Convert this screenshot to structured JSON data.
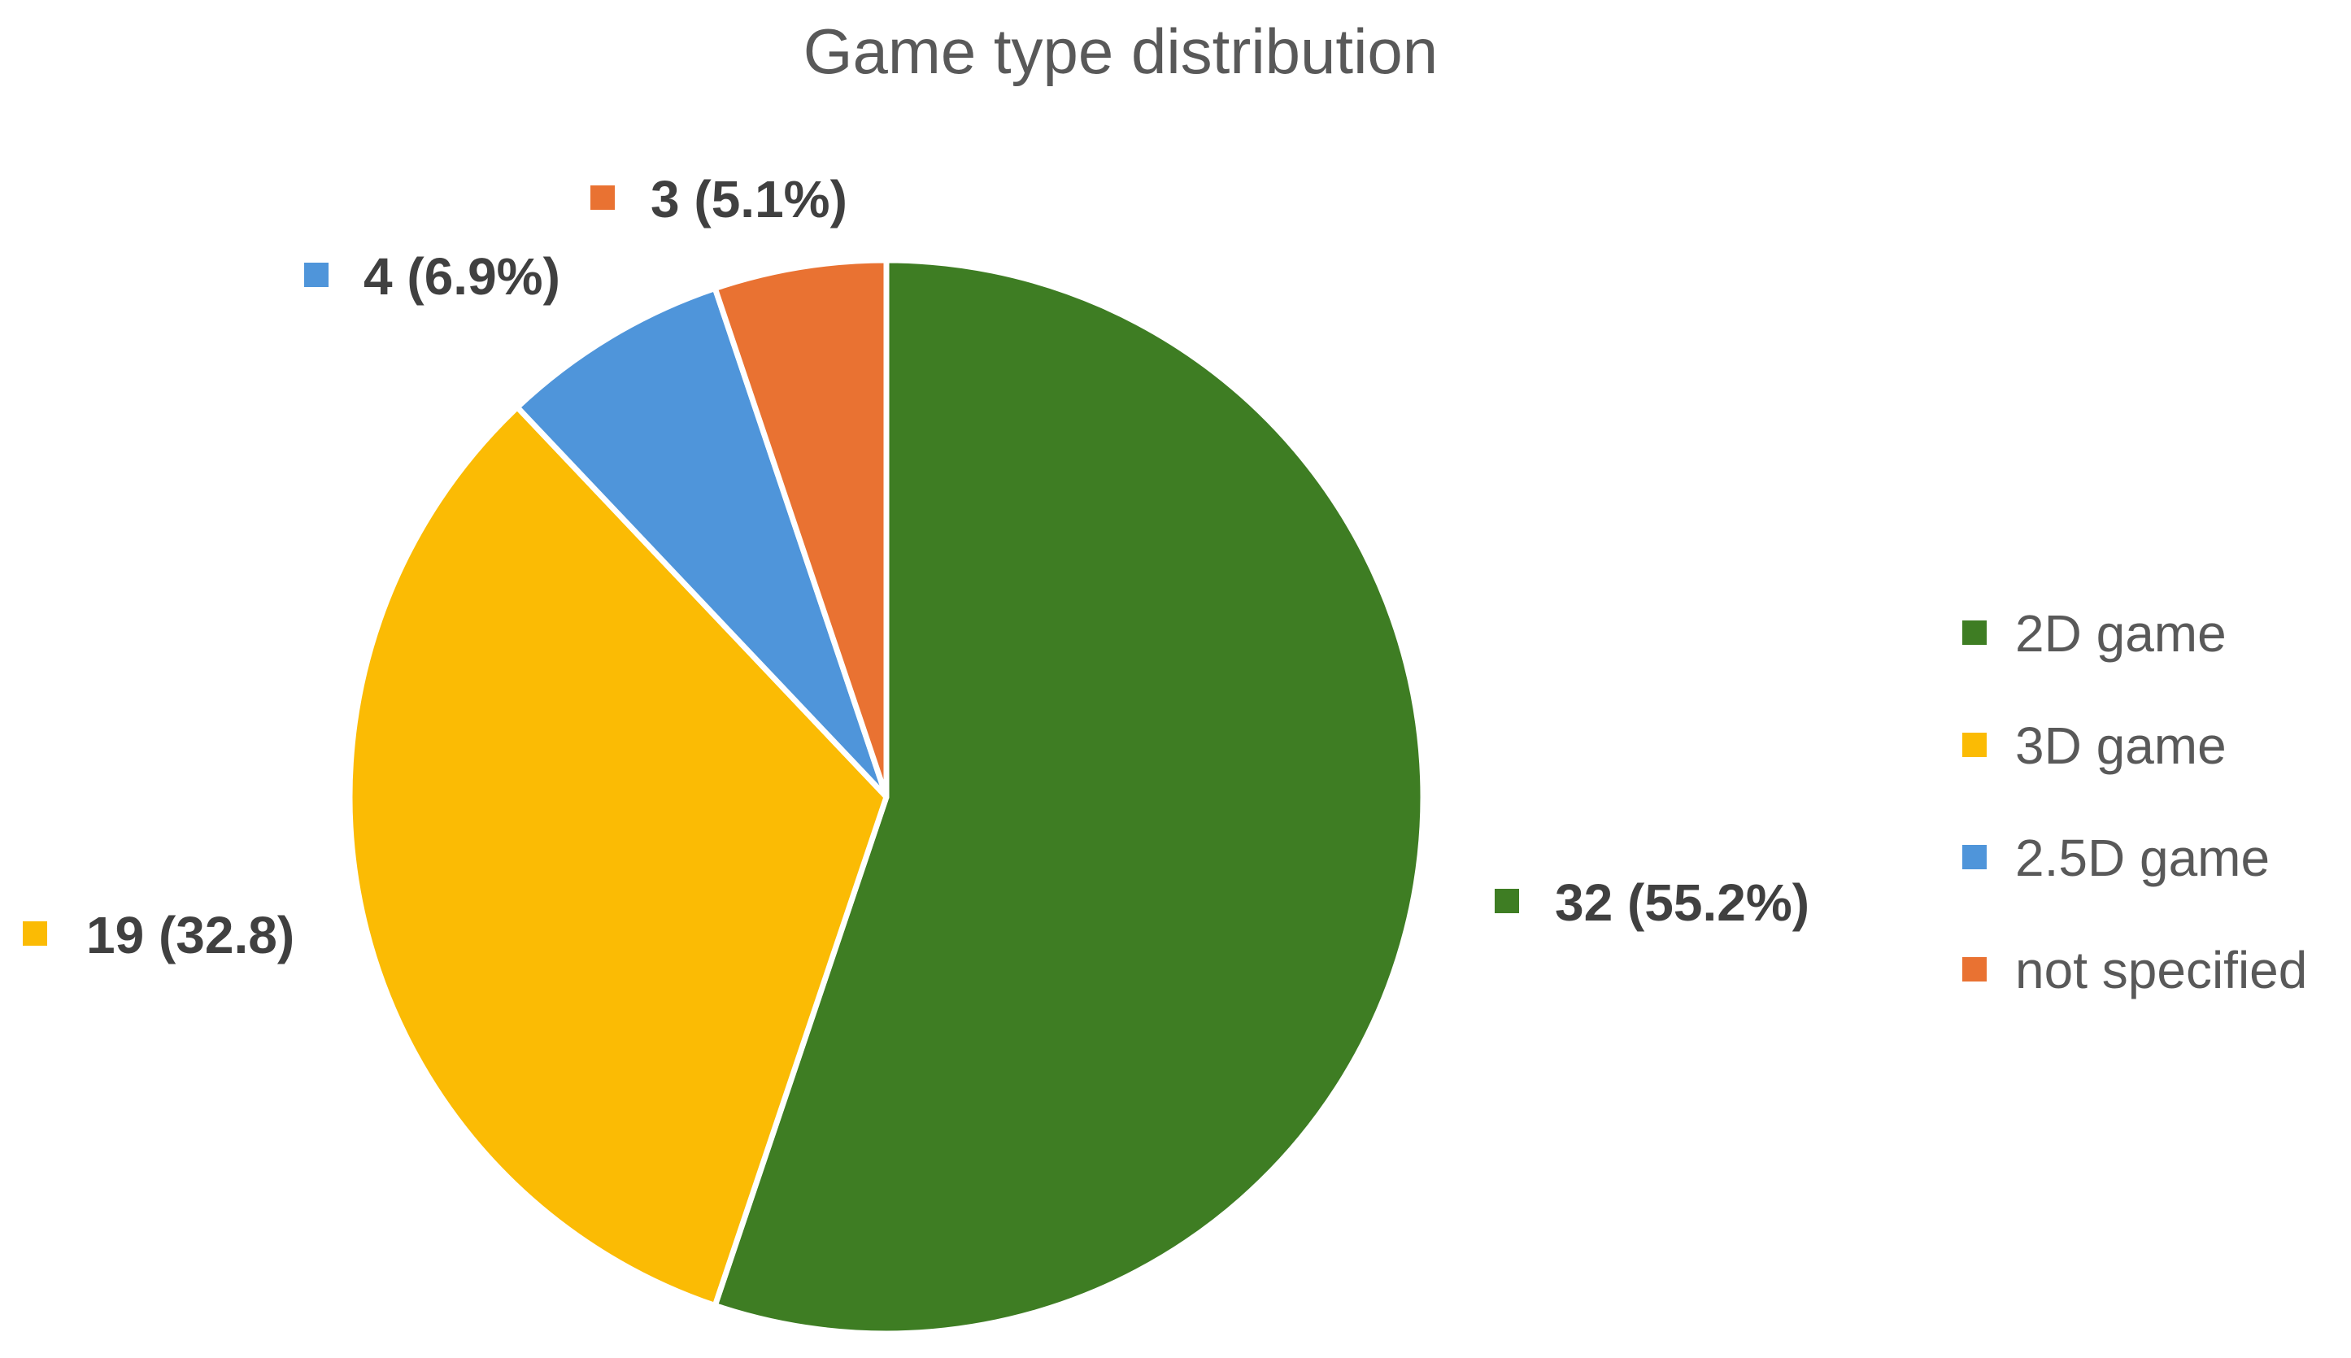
{
  "chart_data": {
    "type": "pie",
    "title": "Game type distribution",
    "categories": [
      "2D game",
      "3D game",
      "2.5D game",
      "not specified"
    ],
    "values": [
      32,
      19,
      4,
      3
    ],
    "data_labels": [
      "32 (55.2%)",
      "19 (32.8)",
      "4 (6.9%)",
      "3 (5.1%)"
    ],
    "colors": [
      "#3e7d23",
      "#fbbb04",
      "#4f95da",
      "#e97232"
    ],
    "start_angle_deg": 0,
    "direction": "clockwise",
    "legend": {
      "position": "right",
      "entries": [
        "2D game",
        "3D game",
        "2.5D game",
        "not specified"
      ]
    }
  }
}
